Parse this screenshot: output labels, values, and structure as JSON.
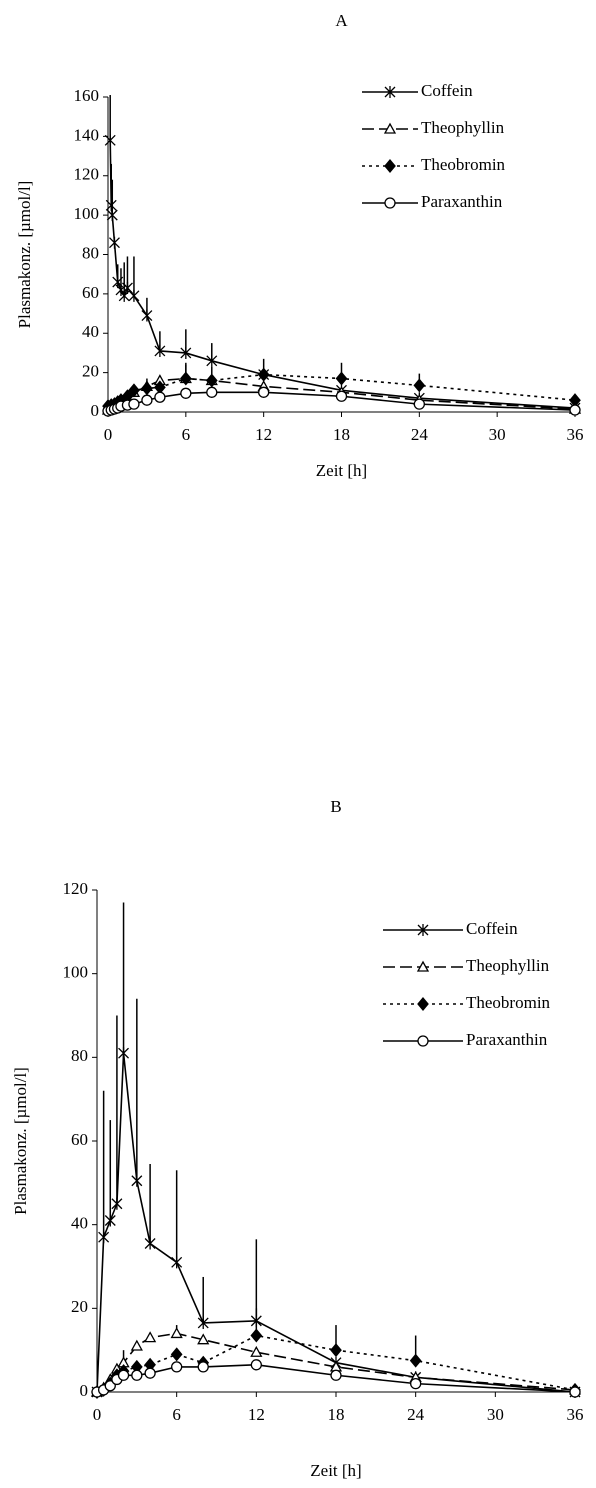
{
  "chart_data": [
    {
      "type": "line",
      "title": "A",
      "xlabel": "Zeit [h]",
      "ylabel": "Plasmakonz. [µmol/l]",
      "xlim": [
        0,
        36
      ],
      "xticks": [
        0,
        6,
        12,
        18,
        24,
        30,
        36
      ],
      "ylim": [
        0,
        160
      ],
      "yticks": [
        0,
        20,
        40,
        60,
        80,
        100,
        120,
        140,
        160
      ],
      "grid": false,
      "legend": "upper right",
      "series": [
        {
          "name": "Coffein",
          "color": "#000000",
          "marker": "star",
          "dash": "solid",
          "x": [
            0.17,
            0.25,
            0.33,
            0.5,
            0.75,
            1,
            1.25,
            1.5,
            2,
            3,
            4,
            6,
            8,
            12,
            18,
            24,
            36
          ],
          "values": [
            138,
            105,
            100,
            86,
            66,
            62,
            59,
            63,
            59,
            49,
            31,
            30,
            26,
            19,
            11,
            7,
            2
          ],
          "errors": [
            23,
            21,
            18,
            null,
            9,
            11,
            17,
            16,
            20,
            9,
            10,
            12,
            9,
            8,
            null,
            null,
            null
          ]
        },
        {
          "name": "Theophyllin",
          "color": "#000000",
          "marker": "triangle",
          "dash": "dashed",
          "x": [
            0,
            0.25,
            0.5,
            0.75,
            1,
            1.5,
            2,
            3,
            4,
            6,
            8,
            12,
            18,
            24,
            36
          ],
          "values": [
            1,
            2,
            3,
            4,
            5,
            7,
            10,
            13,
            16,
            17,
            16,
            13,
            10,
            6,
            1.5
          ],
          "errors": [
            null,
            null,
            null,
            null,
            null,
            null,
            null,
            null,
            null,
            7,
            null,
            null,
            null,
            null,
            null
          ]
        },
        {
          "name": "Theobromin",
          "color": "#000000",
          "marker": "diamond",
          "dash": "dotted",
          "x": [
            0,
            0.25,
            0.5,
            0.75,
            1,
            1.5,
            2,
            3,
            4,
            6,
            8,
            12,
            18,
            24,
            36
          ],
          "values": [
            3,
            3.5,
            4,
            5,
            6,
            8,
            11,
            12,
            12.5,
            17,
            16,
            19,
            17,
            13.5,
            6
          ],
          "errors": [
            null,
            null,
            null,
            null,
            null,
            null,
            3,
            5,
            null,
            8,
            7,
            null,
            8,
            6,
            null
          ]
        },
        {
          "name": "Paraxanthin",
          "color": "#000000",
          "marker": "circle",
          "dash": "solid",
          "x": [
            0,
            0.25,
            0.5,
            0.75,
            1,
            1.5,
            2,
            3,
            4,
            6,
            8,
            12,
            18,
            24,
            36
          ],
          "values": [
            0.5,
            1,
            1.5,
            2,
            3,
            3.5,
            4,
            6,
            7.5,
            9.5,
            10,
            10,
            8,
            4,
            1
          ],
          "errors": [
            null,
            null,
            null,
            null,
            null,
            null,
            null,
            null,
            null,
            null,
            null,
            null,
            null,
            null,
            null
          ]
        }
      ]
    },
    {
      "type": "line",
      "title": "B",
      "xlabel": "Zeit [h]",
      "ylabel": "Plasmakonz. [µmol/l]",
      "xlim": [
        0,
        36
      ],
      "xticks": [
        0,
        6,
        12,
        18,
        24,
        30,
        36
      ],
      "ylim": [
        0,
        120
      ],
      "yticks": [
        0,
        20,
        40,
        60,
        80,
        100,
        120
      ],
      "grid": false,
      "legend": "upper right",
      "series": [
        {
          "name": "Coffein",
          "color": "#000000",
          "marker": "star",
          "dash": "solid",
          "x": [
            0,
            0.5,
            1,
            1.5,
            2,
            3,
            4,
            6,
            8,
            12,
            18,
            24,
            36
          ],
          "values": [
            0,
            37,
            41,
            45,
            81,
            50.5,
            35.5,
            31,
            16.5,
            17,
            7,
            3.5,
            0
          ],
          "errors": [
            null,
            35,
            24,
            45,
            36,
            43.5,
            19,
            22,
            11,
            19.5,
            null,
            null,
            null
          ]
        },
        {
          "name": "Theophyllin",
          "color": "#000000",
          "marker": "triangle",
          "dash": "dashed",
          "x": [
            0,
            0.5,
            1,
            1.5,
            2,
            3,
            4,
            6,
            8,
            12,
            18,
            24,
            36
          ],
          "values": [
            0,
            1,
            3,
            5.5,
            7,
            11,
            13,
            14,
            12.5,
            9.5,
            6,
            3.5,
            0.5
          ],
          "errors": [
            null,
            null,
            null,
            null,
            3,
            null,
            null,
            2,
            null,
            null,
            null,
            null,
            null
          ]
        },
        {
          "name": "Theobromin",
          "color": "#000000",
          "marker": "diamond",
          "dash": "dotted",
          "x": [
            0,
            0.5,
            1,
            1.5,
            2,
            3,
            4,
            6,
            8,
            12,
            18,
            24,
            36
          ],
          "values": [
            0,
            0.5,
            2,
            4,
            5,
            6,
            6.5,
            9,
            7,
            13.5,
            10,
            7.5,
            0.5
          ],
          "errors": [
            null,
            null,
            null,
            null,
            null,
            null,
            null,
            null,
            null,
            6.5,
            6,
            6,
            null
          ]
        },
        {
          "name": "Paraxanthin",
          "color": "#000000",
          "marker": "circle",
          "dash": "solid",
          "x": [
            0,
            0.5,
            1,
            1.5,
            2,
            3,
            4,
            6,
            8,
            12,
            18,
            24,
            36
          ],
          "values": [
            0,
            0.5,
            1.5,
            3,
            4,
            4,
            4.5,
            6,
            6,
            6.5,
            4,
            2,
            0
          ],
          "errors": [
            null,
            null,
            null,
            null,
            null,
            null,
            null,
            null,
            null,
            null,
            null,
            null,
            null
          ]
        }
      ]
    }
  ]
}
